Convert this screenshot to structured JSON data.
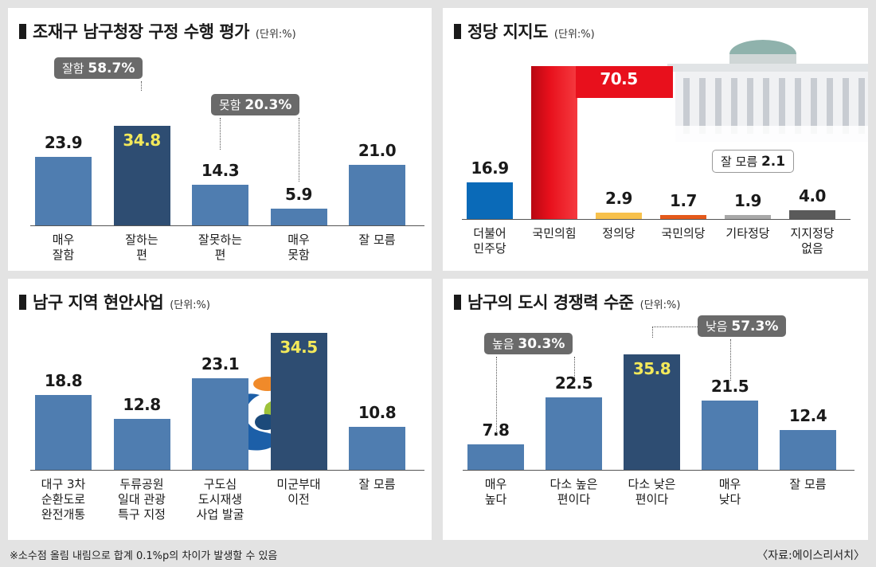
{
  "chart_data": [
    {
      "type": "bar",
      "title": "조재구 남구청장 구정 수행 평가",
      "unit": "(단위:%)",
      "categories": [
        "매우\n잘함",
        "잘하는\n편",
        "잘못하는\n편",
        "매우\n못함",
        "잘 모름"
      ],
      "values": [
        23.9,
        34.8,
        14.3,
        5.9,
        21.0
      ],
      "value_labels": [
        "23.9",
        "34.8",
        "14.3",
        "5.9",
        "21.0"
      ],
      "highlight_index": 1,
      "groups": [
        {
          "label": "잘함",
          "value": "58.7%"
        },
        {
          "label": "못함",
          "value": "20.3%"
        }
      ]
    },
    {
      "type": "bar",
      "title": "정당 지지도",
      "unit": "(단위:%)",
      "categories": [
        "더불어\n민주당",
        "국민의힘",
        "정의당",
        "국민의당",
        "기타정당",
        "지지정당\n없음"
      ],
      "values": [
        16.9,
        70.5,
        2.9,
        1.7,
        1.9,
        4.0
      ],
      "value_labels": [
        "16.9",
        "70.5",
        "2.9",
        "1.7",
        "1.9",
        "4.0"
      ],
      "colors": [
        "#0a6ab8",
        "#e8101c",
        "#f7c14c",
        "#e45a1b",
        "#a8a8a8",
        "#5a5a5a"
      ],
      "note": {
        "label": "잘 모름",
        "value": "2.1"
      }
    },
    {
      "type": "bar",
      "title": "남구 지역 현안사업",
      "unit": "(단위:%)",
      "categories": [
        "대구 3차\n순환도로\n완전개통",
        "두류공원\n일대 관광\n특구 지정",
        "구도심\n도시재생\n사업 발굴",
        "미군부대\n이전",
        "잘 모름"
      ],
      "values": [
        18.8,
        12.8,
        23.1,
        34.5,
        10.8
      ],
      "value_labels": [
        "18.8",
        "12.8",
        "23.1",
        "34.5",
        "10.8"
      ],
      "highlight_index": 3
    },
    {
      "type": "bar",
      "title": "남구의 도시 경쟁력 수준",
      "unit": "(단위:%)",
      "categories": [
        "매우\n높다",
        "다소 높은\n편이다",
        "다소 낮은\n편이다",
        "매우\n낮다",
        "잘 모름"
      ],
      "values": [
        7.8,
        22.5,
        35.8,
        21.5,
        12.4
      ],
      "value_labels": [
        "7.8",
        "22.5",
        "35.8",
        "21.5",
        "12.4"
      ],
      "highlight_index": 2,
      "groups": [
        {
          "label": "높음",
          "value": "30.3%"
        },
        {
          "label": "낮음",
          "value": "57.3%"
        }
      ]
    }
  ],
  "footnote": "※소수점 올림 내림으로 합계 0.1%p의 차이가 발생할 수 있음",
  "source": "〈자료:에이스리서치〉",
  "colors": {
    "bar": "#4f7db0",
    "highlight": "#2e4d72"
  }
}
